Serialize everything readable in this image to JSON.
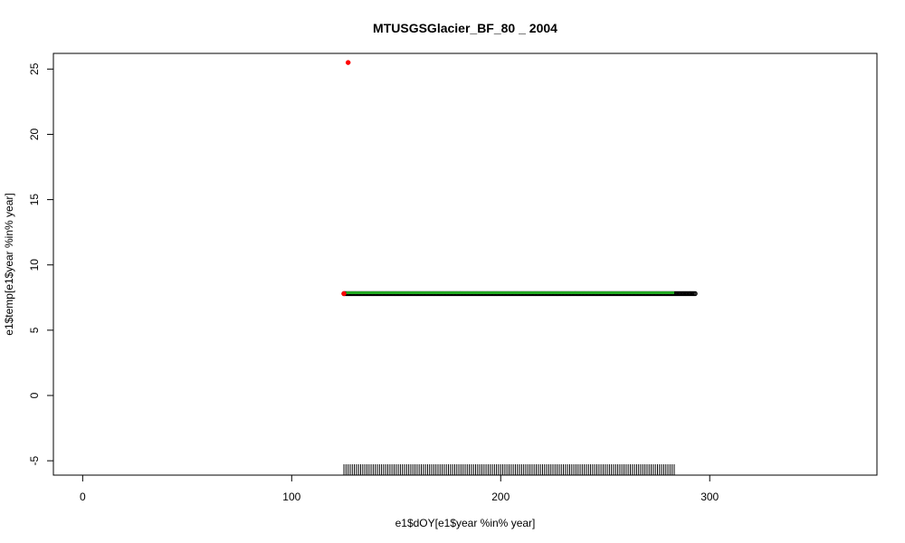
{
  "chart_data": {
    "type": "scatter",
    "title": "MTUSGSGlacier_BF_80 _ 2004",
    "xlabel": "e1$dOY[e1$year %in% year]",
    "ylabel": "e1$temp[e1$year %in% year]",
    "xlim": [
      -14,
      380
    ],
    "ylim": [
      -6.1,
      26.2
    ],
    "x_ticks": [
      0,
      100,
      200,
      300
    ],
    "y_ticks": [
      -5,
      0,
      5,
      10,
      15,
      20,
      25
    ],
    "points": {
      "x_start": 125,
      "x_end": 293,
      "y": 7.8,
      "color": "#000000"
    },
    "highlight_points": [
      {
        "x": 125,
        "y": 7.8,
        "color": "#ff0000"
      },
      {
        "x": 127,
        "y": 25.5,
        "color": "#ff0000"
      }
    ],
    "fit_line": {
      "x_start": 126,
      "x_end": 283,
      "y": 7.8,
      "color": "#22aa22"
    },
    "rug": {
      "x_start": 125,
      "x_end": 283,
      "color": "#000000"
    }
  }
}
